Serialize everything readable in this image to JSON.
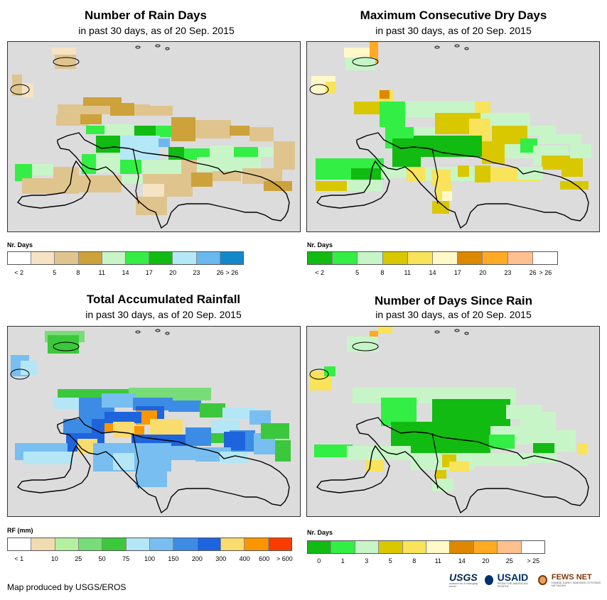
{
  "credit": "Map produced by USGS/EROS",
  "logos": {
    "usgs": "USGS",
    "usgs_tag": "science for a changing world",
    "usaid": "USAID",
    "usaid_tag": "FROM THE AMERICAN PEOPLE",
    "fews": "FEWS NET",
    "fews_tag": "FAMINE EARLY WARNING SYSTEMS NETWORK"
  },
  "panels": [
    {
      "title": "Number of Rain Days",
      "subtitle": "in past 30 days, as of 20 Sep. 2015",
      "legend_title": "Nr. Days",
      "legend_colors": [
        "#ffffff",
        "#f5e3c4",
        "#e0c48e",
        "#cda23a",
        "#c8f5c8",
        "#33ee44",
        "#11bb11",
        "#b5e8f7",
        "#6ab8f0",
        "#1188cc"
      ],
      "legend_labels": [
        "< 2",
        "5",
        "8",
        "11",
        "14",
        "17",
        "20",
        "23",
        "26",
        "> 26"
      ],
      "legend_label_mode": "boundary"
    },
    {
      "title": "Maximum Consecutive Dry Days",
      "subtitle": "in past 30 days, as of 20 Sep. 2015",
      "legend_title": "Nr. Days",
      "legend_colors": [
        "#11bb11",
        "#33ee44",
        "#c8f5c8",
        "#d9c800",
        "#f8e35a",
        "#fff8c8",
        "#dd8800",
        "#ffaa22",
        "#ffc090",
        "#ffffff"
      ],
      "legend_labels": [
        "< 2",
        "5",
        "8",
        "11",
        "14",
        "17",
        "20",
        "23",
        "26",
        "> 26"
      ],
      "legend_label_mode": "boundary"
    },
    {
      "title": "Total Accumulated Rainfall",
      "subtitle": "in past 30 days, as of 20 Sep. 2015",
      "legend_title": "RF (mm)",
      "legend_colors": [
        "#ffffff",
        "#f0dcb0",
        "#b4f0a0",
        "#78dc78",
        "#3cc83c",
        "#b4e6f5",
        "#78bef0",
        "#3c8ce6",
        "#1e64dc",
        "#fadc6e",
        "#fa9600",
        "#fa3c00"
      ],
      "legend_labels": [
        "< 1",
        "10",
        "25",
        "50",
        "75",
        "100",
        "150",
        "200",
        "300",
        "400",
        "600",
        "> 600"
      ],
      "legend_label_mode": "rf"
    },
    {
      "title": "Number of Days Since Rain",
      "subtitle": "in past 30 days, as of 20 Sep. 2015",
      "legend_title": "Nr. Days",
      "legend_colors": [
        "#11bb11",
        "#33ee44",
        "#c8f5c8",
        "#d9c800",
        "#f8e35a",
        "#fff8c8",
        "#dd8800",
        "#ffaa22",
        "#ffc090",
        "#ffffff"
      ],
      "legend_labels": [
        "0",
        "1",
        "3",
        "5",
        "8",
        "11",
        "14",
        "20",
        "25",
        "> 25"
      ],
      "legend_label_mode": "center"
    }
  ]
}
